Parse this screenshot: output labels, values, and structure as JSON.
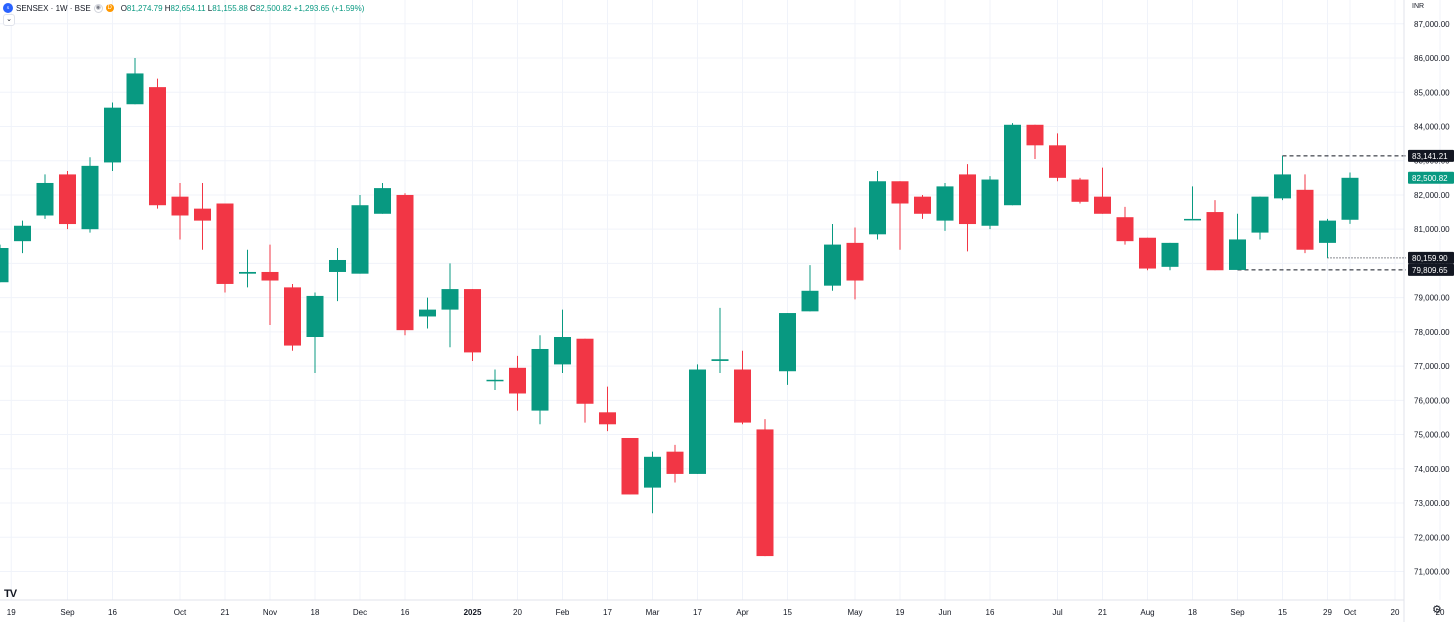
{
  "legend": {
    "symbol_icon": "sensex-logo-icon",
    "symbol": "SENSEX · 1W · BSE",
    "badge_d": "D",
    "o_label": "O",
    "open": "81,274.79",
    "h_label": "H",
    "high": "82,654.11",
    "l_label": "L",
    "low": "81,155.88",
    "c_label": "C",
    "close": "82,500.82",
    "change": "+1,293.65 (+1.59%)"
  },
  "currency": "INR",
  "colors": {
    "up": "#089981",
    "down": "#f23645",
    "grid": "#f0f3fa",
    "axis_text": "#131722",
    "label_bg": "#131722"
  },
  "chart_data": {
    "type": "candlestick",
    "title": "SENSEX · 1W · BSE",
    "ylim": [
      70500,
      87500
    ],
    "y_ticks": [
      71000,
      72000,
      73000,
      74000,
      75000,
      76000,
      77000,
      78000,
      79000,
      80000,
      81000,
      82000,
      83000,
      84000,
      85000,
      86000,
      87000
    ],
    "y_tick_labels": [
      "71,000.00",
      "72,000.00",
      "73,000.00",
      "74,000.00",
      "75,000.00",
      "76,000.00",
      "77,000.00",
      "78,000.00",
      "79,000.00",
      "80,000.00",
      "81,000.00",
      "82,000.00",
      "83,000.00",
      "84,000.00",
      "85,000.00",
      "86,000.00",
      "87,000.00"
    ],
    "x_ticks": [
      {
        "i": 0.5,
        "label": "19"
      },
      {
        "i": 3,
        "label": "Sep"
      },
      {
        "i": 5,
        "label": "16"
      },
      {
        "i": 8,
        "label": "Oct"
      },
      {
        "i": 10,
        "label": "21"
      },
      {
        "i": 12,
        "label": "Nov"
      },
      {
        "i": 14,
        "label": "18"
      },
      {
        "i": 16,
        "label": "Dec"
      },
      {
        "i": 18,
        "label": "16"
      },
      {
        "i": 21,
        "label": "2025"
      },
      {
        "i": 23,
        "label": "20"
      },
      {
        "i": 25,
        "label": "Feb"
      },
      {
        "i": 27,
        "label": "17"
      },
      {
        "i": 29,
        "label": "Mar"
      },
      {
        "i": 31,
        "label": "17"
      },
      {
        "i": 33,
        "label": "Apr"
      },
      {
        "i": 35,
        "label": "15"
      },
      {
        "i": 38,
        "label": "May"
      },
      {
        "i": 40,
        "label": "19"
      },
      {
        "i": 42,
        "label": "Jun"
      },
      {
        "i": 44,
        "label": "16"
      },
      {
        "i": 47,
        "label": "Jul"
      },
      {
        "i": 49,
        "label": "21"
      },
      {
        "i": 51,
        "label": "Aug"
      },
      {
        "i": 53,
        "label": "18"
      },
      {
        "i": 55,
        "label": "Sep"
      },
      {
        "i": 57,
        "label": "15"
      },
      {
        "i": 59,
        "label": "29"
      },
      {
        "i": 60,
        "label": "Oct"
      },
      {
        "i": 62,
        "label": "20"
      },
      {
        "i": 64,
        "label": "20"
      }
    ],
    "candles": [
      {
        "o": 79450,
        "h": 80550,
        "l": 79450,
        "c": 80450
      },
      {
        "o": 80650,
        "h": 81250,
        "l": 80300,
        "c": 81100
      },
      {
        "o": 81400,
        "h": 82600,
        "l": 81300,
        "c": 82350
      },
      {
        "o": 82600,
        "h": 82700,
        "l": 81000,
        "c": 81150
      },
      {
        "o": 81000,
        "h": 83100,
        "l": 80900,
        "c": 82850
      },
      {
        "o": 82950,
        "h": 84700,
        "l": 82700,
        "c": 84550
      },
      {
        "o": 84650,
        "h": 86000,
        "l": 84650,
        "c": 85550
      },
      {
        "o": 85150,
        "h": 85400,
        "l": 81600,
        "c": 81700
      },
      {
        "o": 81950,
        "h": 82350,
        "l": 80700,
        "c": 81400
      },
      {
        "o": 81600,
        "h": 82350,
        "l": 80400,
        "c": 81250
      },
      {
        "o": 81750,
        "h": 81750,
        "l": 79150,
        "c": 79400
      },
      {
        "o": 79700,
        "h": 80400,
        "l": 79300,
        "c": 79750
      },
      {
        "o": 79750,
        "h": 80550,
        "l": 78200,
        "c": 79500
      },
      {
        "o": 79300,
        "h": 79400,
        "l": 77450,
        "c": 77600
      },
      {
        "o": 77850,
        "h": 79150,
        "l": 76800,
        "c": 79050
      },
      {
        "o": 79750,
        "h": 80450,
        "l": 78900,
        "c": 80100
      },
      {
        "o": 79700,
        "h": 82000,
        "l": 79700,
        "c": 81700
      },
      {
        "o": 81450,
        "h": 82350,
        "l": 81450,
        "c": 82200
      },
      {
        "o": 82000,
        "h": 82050,
        "l": 77900,
        "c": 78050
      },
      {
        "o": 78450,
        "h": 79000,
        "l": 78100,
        "c": 78650
      },
      {
        "o": 78650,
        "h": 80000,
        "l": 77550,
        "c": 79250
      },
      {
        "o": 79250,
        "h": 79250,
        "l": 77150,
        "c": 77400
      },
      {
        "o": 76600,
        "h": 76900,
        "l": 76300,
        "c": 76600
      },
      {
        "o": 76950,
        "h": 77300,
        "l": 75700,
        "c": 76200
      },
      {
        "o": 75700,
        "h": 77900,
        "l": 75300,
        "c": 77500
      },
      {
        "o": 77050,
        "h": 78650,
        "l": 76800,
        "c": 77850
      },
      {
        "o": 77800,
        "h": 77800,
        "l": 75350,
        "c": 75900
      },
      {
        "o": 75650,
        "h": 76400,
        "l": 75100,
        "c": 75300
      },
      {
        "o": 74900,
        "h": 74900,
        "l": 73250,
        "c": 73250
      },
      {
        "o": 73450,
        "h": 74500,
        "l": 72700,
        "c": 74350
      },
      {
        "o": 74500,
        "h": 74700,
        "l": 73600,
        "c": 73850
      },
      {
        "o": 73850,
        "h": 77050,
        "l": 73850,
        "c": 76900
      },
      {
        "o": 77150,
        "h": 78700,
        "l": 76800,
        "c": 77200
      },
      {
        "o": 76900,
        "h": 77450,
        "l": 75300,
        "c": 75350
      },
      {
        "o": 75150,
        "h": 75450,
        "l": 71450,
        "c": 71450
      },
      {
        "o": 76850,
        "h": 78550,
        "l": 76450,
        "c": 78550
      },
      {
        "o": 78600,
        "h": 79950,
        "l": 78600,
        "c": 79200
      },
      {
        "o": 79350,
        "h": 81150,
        "l": 79200,
        "c": 80550
      },
      {
        "o": 80600,
        "h": 81050,
        "l": 78950,
        "c": 79500
      },
      {
        "o": 80850,
        "h": 82700,
        "l": 80700,
        "c": 82400
      },
      {
        "o": 82400,
        "h": 82400,
        "l": 80400,
        "c": 81750
      },
      {
        "o": 81950,
        "h": 82000,
        "l": 81300,
        "c": 81450
      },
      {
        "o": 81250,
        "h": 82350,
        "l": 80950,
        "c": 82250
      },
      {
        "o": 82600,
        "h": 82900,
        "l": 80350,
        "c": 81150
      },
      {
        "o": 81100,
        "h": 82550,
        "l": 81000,
        "c": 82450
      },
      {
        "o": 81700,
        "h": 84100,
        "l": 81700,
        "c": 84050
      },
      {
        "o": 84050,
        "h": 84050,
        "l": 83050,
        "c": 83450
      },
      {
        "o": 83450,
        "h": 83800,
        "l": 82400,
        "c": 82500
      },
      {
        "o": 82450,
        "h": 82500,
        "l": 81750,
        "c": 81800
      },
      {
        "o": 81950,
        "h": 82800,
        "l": 81450,
        "c": 81450
      },
      {
        "o": 81350,
        "h": 81650,
        "l": 80550,
        "c": 80650
      },
      {
        "o": 80750,
        "h": 80750,
        "l": 79800,
        "c": 79850
      },
      {
        "o": 79900,
        "h": 80600,
        "l": 79800,
        "c": 80600
      },
      {
        "o": 81300,
        "h": 82250,
        "l": 81300,
        "c": 81300
      },
      {
        "o": 81500,
        "h": 81850,
        "l": 79800,
        "c": 79800
      },
      {
        "o": 79809.65,
        "h": 81450,
        "l": 79809.65,
        "c": 80700
      },
      {
        "o": 80900,
        "h": 81950,
        "l": 80700,
        "c": 81950
      },
      {
        "o": 81900,
        "h": 83141.21,
        "l": 81850,
        "c": 82600
      },
      {
        "o": 82150,
        "h": 82600,
        "l": 80300,
        "c": 80400
      },
      {
        "o": 80600,
        "h": 81300,
        "l": 80159.9,
        "c": 81250
      },
      {
        "o": 81274.79,
        "h": 82654.11,
        "l": 81155.88,
        "c": 82500.82
      }
    ],
    "price_labels": [
      {
        "value": 83141.21,
        "text": "83,141.21",
        "kind": "high"
      },
      {
        "value": 82500.82,
        "text": "82,500.82",
        "kind": "last"
      },
      {
        "value": 80159.9,
        "text": "80,159.90",
        "kind": "low"
      },
      {
        "value": 79809.65,
        "text": "79,809.65",
        "kind": "low"
      }
    ],
    "guides": [
      {
        "from_index": 57,
        "value": 83141.21,
        "style": "dashed"
      },
      {
        "from_index": 59,
        "value": 80159.9,
        "style": "dotted"
      },
      {
        "from_index": 55,
        "value": 79809.65,
        "style": "dashed"
      }
    ],
    "grid": true
  }
}
